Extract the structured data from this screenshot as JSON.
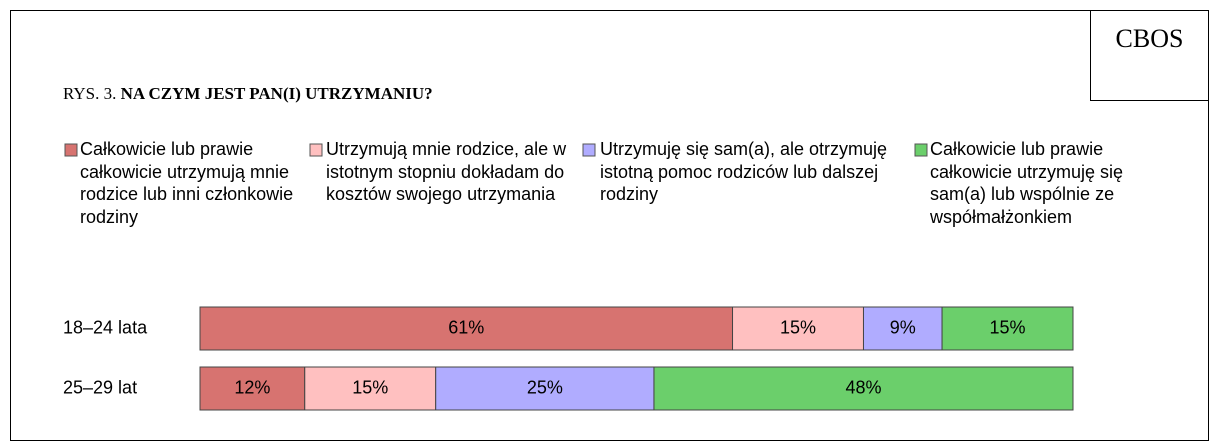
{
  "source": "CBOS",
  "figure_label": "RYS. 3.",
  "chart_data": {
    "type": "stacked_barh",
    "title": "NA CZYM JEST PAN(I) UTRZYMANIU?",
    "categories": [
      "18–24 lata",
      "25–29 lat"
    ],
    "xlim": [
      0,
      100
    ],
    "series": [
      {
        "name": "Całkowicie lub prawie całkowicie utrzymują mnie rodzice lub inni członkowie rodziny",
        "color": "#d77370",
        "values": [
          61,
          12
        ],
        "value_labels": [
          "61%",
          "12%"
        ]
      },
      {
        "name": "Utrzymują mnie rodzice, ale w istotnym stopniu dokładam do kosztów swojego utrzymania",
        "color": "#ffc0c0",
        "values": [
          15,
          15
        ],
        "value_labels": [
          "15%",
          "15%"
        ]
      },
      {
        "name": "Utrzymuję się sam(a), ale otrzymuję istotną pomoc rodziców lub dalszej rodziny",
        "color": "#b0acff",
        "values": [
          9,
          25
        ],
        "value_labels": [
          "9%",
          "25%"
        ]
      },
      {
        "name": "Całkowicie lub prawie całkowicie utrzymuję się sam(a) lub wspólnie ze współmałżonkiem",
        "color": "#6bcf6b",
        "values": [
          15,
          48
        ],
        "value_labels": [
          "15%",
          "48%"
        ]
      }
    ]
  }
}
